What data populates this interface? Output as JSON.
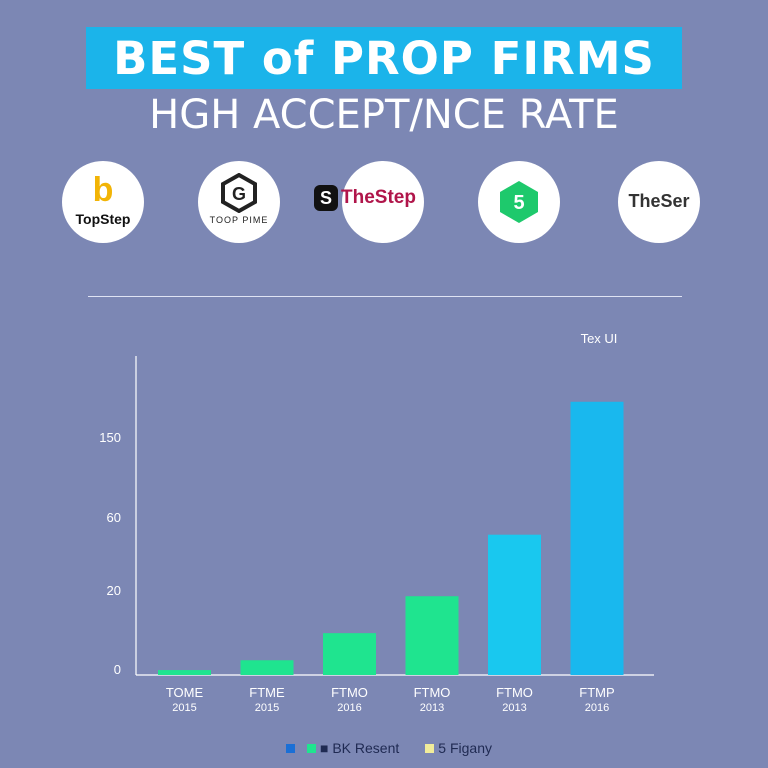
{
  "header": {
    "title": "BEST of PROP FIRMS",
    "subtitle": "HGH ACCEPT/NCE RATE"
  },
  "logos": [
    {
      "label": "TopStep",
      "mark": "b",
      "mark_color": "#f2b406"
    },
    {
      "label": "TOOP PIME",
      "mark": "G",
      "mark_color": "#222222"
    },
    {
      "label": "TheStep",
      "mark": "S",
      "mark_color": "#111111",
      "text_color": "#b0154a"
    },
    {
      "label": "",
      "mark": "5",
      "mark_color": "#1ec96c"
    },
    {
      "label": "TheSer",
      "mark": "",
      "mark_color": "#333333"
    }
  ],
  "colors": {
    "background": "#7c87b4",
    "title_band": "#1bb4ea",
    "bar_green": "#1fe48f",
    "bar_blue": "#19b8ee",
    "axis": "#ffffff"
  },
  "chart_data": {
    "type": "bar",
    "categories": [
      "TOME",
      "FTME",
      "FTMO",
      "FTMO",
      "FTMO",
      "FTMP"
    ],
    "sublabels": [
      "2015",
      "2015",
      "2016",
      "2013",
      "2013",
      "2016"
    ],
    "values": [
      2,
      6,
      17,
      32,
      57,
      111
    ],
    "bar_colors": [
      "#1fe48f",
      "#1fe48f",
      "#1fe48f",
      "#1fe48f",
      "#19c8ef",
      "#19b8ee"
    ],
    "yticks": [
      "0",
      "20",
      "60",
      "150"
    ],
    "ylim": [
      0,
      130
    ],
    "annotation": "Tex UI",
    "legend": [
      {
        "label": "■ BK Resent",
        "color": "#1a6fd6",
        "color2": "#1fe48f"
      },
      {
        "label": "5 Figany",
        "color": "#f1ec9a"
      }
    ]
  }
}
